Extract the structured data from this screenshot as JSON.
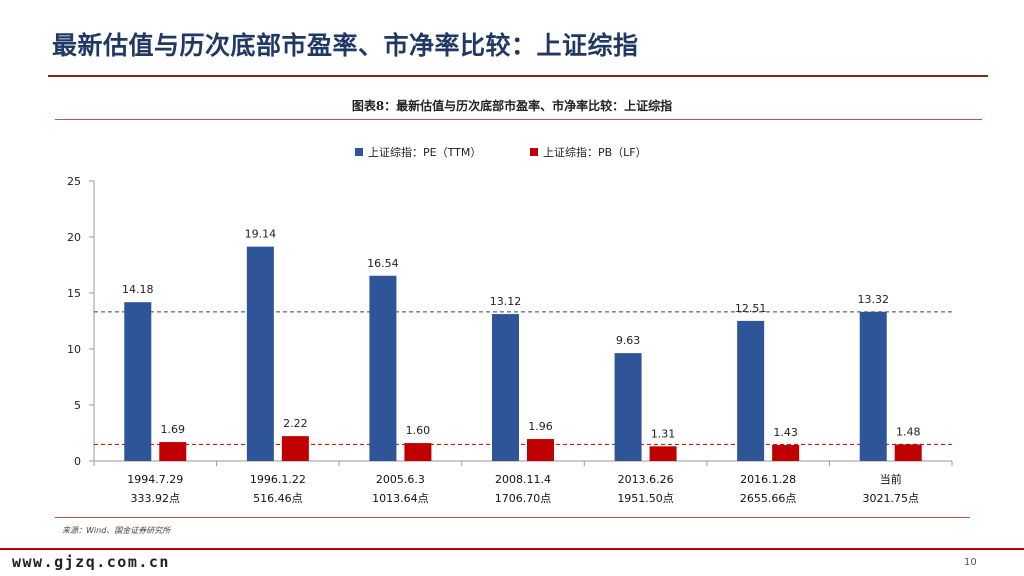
{
  "slide": {
    "title": "最新估值与历次底部市盈率、市净率比较：上证综指",
    "page_number": "10",
    "watermark": "www.gjzq.com.cn"
  },
  "figure": {
    "caption": "图表8：最新估值与历次底部市盈率、市净率比较：上证综指",
    "source": "来源：Wind、国金证券研究所"
  },
  "chart_data": {
    "type": "bar",
    "categories": [
      [
        "1994.7.29",
        "333.92点"
      ],
      [
        "1996.1.22",
        "516.46点"
      ],
      [
        "2005.6.3",
        "1013.64点"
      ],
      [
        "2008.11.4",
        "1706.70点"
      ],
      [
        "2013.6.26",
        "1951.50点"
      ],
      [
        "2016.1.28",
        "2655.66点"
      ],
      [
        "当前",
        "3021.75点"
      ]
    ],
    "series": [
      {
        "name": "上证综指：PE（TTM）",
        "color": "#2e5597",
        "values": [
          14.18,
          19.14,
          16.54,
          13.12,
          9.63,
          12.51,
          13.32
        ],
        "labels": [
          "14.18",
          "19.14",
          "16.54",
          "13.12",
          "9.63",
          "12.51",
          "13.32"
        ]
      },
      {
        "name": "上证综指：PB（LF）",
        "color": "#c00000",
        "values": [
          1.69,
          2.22,
          1.6,
          1.96,
          1.31,
          1.43,
          1.48
        ],
        "labels": [
          "1.69",
          "2.22",
          "1.60",
          "1.96",
          "1.31",
          "1.43",
          "1.48"
        ]
      }
    ],
    "ylim": [
      0,
      25
    ],
    "yticks": [
      "0",
      "5",
      "10",
      "15",
      "20",
      "25"
    ],
    "reference_lines": [
      {
        "value": 13.32,
        "color": "#444444",
        "style": "dashed"
      },
      {
        "value": 1.48,
        "color": "#c00000",
        "style": "dashed"
      }
    ],
    "legend_position": "top-center",
    "grid": false
  }
}
